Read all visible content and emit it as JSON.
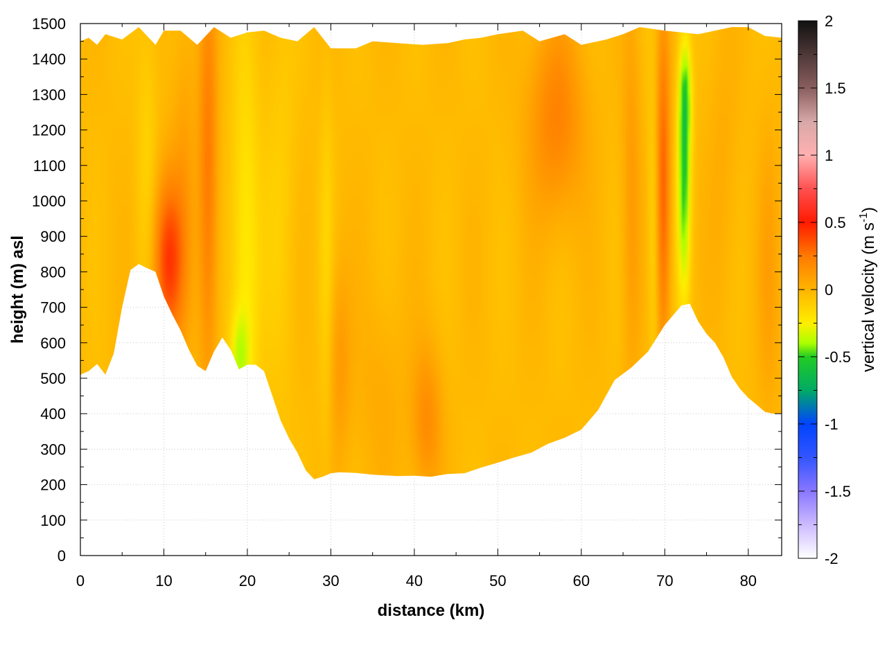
{
  "chart_data": {
    "type": "heatmap",
    "title": "",
    "xlabel": "distance (km)",
    "ylabel": "height (m) asl",
    "xlim": [
      0,
      84
    ],
    "ylim": [
      0,
      1500
    ],
    "xticks": [
      "0",
      "10",
      "20",
      "30",
      "40",
      "50",
      "60",
      "70",
      "80"
    ],
    "yticks": [
      "0",
      "100",
      "200",
      "300",
      "400",
      "500",
      "600",
      "700",
      "800",
      "900",
      "1000",
      "1100",
      "1200",
      "1300",
      "1400",
      "1500"
    ],
    "grid": true,
    "colorbar": {
      "label_main": "vertical velocity (m s",
      "label_sup": "-1",
      "label_end": ")",
      "range": [
        -2,
        2
      ],
      "ticks": [
        "2",
        "1.5",
        "1",
        "0.5",
        "0",
        "-0.5",
        "-1",
        "-1.5",
        "-2"
      ],
      "stops": [
        {
          "v": 2.0,
          "color": "#111111"
        },
        {
          "v": 1.5,
          "color": "#8a5e5e"
        },
        {
          "v": 1.25,
          "color": "#d8a8a8"
        },
        {
          "v": 1.0,
          "color": "#ffb0b0"
        },
        {
          "v": 0.75,
          "color": "#ff5050"
        },
        {
          "v": 0.5,
          "color": "#ff1a00"
        },
        {
          "v": 0.25,
          "color": "#ff7a00"
        },
        {
          "v": 0.0,
          "color": "#ffb400"
        },
        {
          "v": -0.25,
          "color": "#ffee00"
        },
        {
          "v": -0.4,
          "color": "#aaff00"
        },
        {
          "v": -0.5,
          "color": "#22cc22"
        },
        {
          "v": -0.75,
          "color": "#00aa66"
        },
        {
          "v": -1.0,
          "color": "#0044ff"
        },
        {
          "v": -1.25,
          "color": "#3355ff"
        },
        {
          "v": -1.5,
          "color": "#8877ff"
        },
        {
          "v": -1.75,
          "color": "#ccbbff"
        },
        {
          "v": -2.0,
          "color": "#ffffff"
        }
      ]
    },
    "terrain_km_m": [
      [
        0,
        510
      ],
      [
        1,
        520
      ],
      [
        2,
        540
      ],
      [
        3,
        510
      ],
      [
        4,
        570
      ],
      [
        5,
        700
      ],
      [
        6,
        805
      ],
      [
        7,
        822
      ],
      [
        8,
        810
      ],
      [
        9,
        800
      ],
      [
        10,
        730
      ],
      [
        11,
        680
      ],
      [
        12,
        635
      ],
      [
        13,
        580
      ],
      [
        14,
        535
      ],
      [
        15,
        520
      ],
      [
        16,
        575
      ],
      [
        17,
        615
      ],
      [
        18,
        580
      ],
      [
        19,
        525
      ],
      [
        20,
        538
      ],
      [
        21,
        538
      ],
      [
        22,
        520
      ],
      [
        23,
        450
      ],
      [
        24,
        380
      ],
      [
        25,
        330
      ],
      [
        26,
        290
      ],
      [
        27,
        240
      ],
      [
        28,
        215
      ],
      [
        29,
        222
      ],
      [
        30,
        232
      ],
      [
        31,
        235
      ],
      [
        33,
        233
      ],
      [
        35,
        228
      ],
      [
        38,
        224
      ],
      [
        40,
        225
      ],
      [
        42,
        222
      ],
      [
        44,
        230
      ],
      [
        46,
        232
      ],
      [
        48,
        248
      ],
      [
        50,
        262
      ],
      [
        52,
        277
      ],
      [
        54,
        290
      ],
      [
        56,
        315
      ],
      [
        58,
        332
      ],
      [
        60,
        355
      ],
      [
        62,
        410
      ],
      [
        64,
        495
      ],
      [
        66,
        530
      ],
      [
        68,
        575
      ],
      [
        70,
        650
      ],
      [
        72,
        705
      ],
      [
        73,
        710
      ],
      [
        74,
        660
      ],
      [
        75,
        625
      ],
      [
        76,
        600
      ],
      [
        77,
        560
      ],
      [
        78,
        505
      ],
      [
        79,
        470
      ],
      [
        80,
        445
      ],
      [
        81,
        425
      ],
      [
        82,
        405
      ],
      [
        83,
        400
      ],
      [
        84,
        400
      ]
    ],
    "top_km_m": [
      [
        0,
        1450
      ],
      [
        1,
        1460
      ],
      [
        2,
        1440
      ],
      [
        3,
        1470
      ],
      [
        5,
        1455
      ],
      [
        7,
        1490
      ],
      [
        9,
        1440
      ],
      [
        10,
        1480
      ],
      [
        12,
        1480
      ],
      [
        14,
        1440
      ],
      [
        16,
        1490
      ],
      [
        18,
        1460
      ],
      [
        20,
        1475
      ],
      [
        22,
        1480
      ],
      [
        24,
        1460
      ],
      [
        26,
        1450
      ],
      [
        28,
        1490
      ],
      [
        30,
        1430
      ],
      [
        33,
        1430
      ],
      [
        35,
        1450
      ],
      [
        38,
        1445
      ],
      [
        41,
        1440
      ],
      [
        44,
        1445
      ],
      [
        46,
        1455
      ],
      [
        48,
        1460
      ],
      [
        50,
        1470
      ],
      [
        53,
        1480
      ],
      [
        55,
        1450
      ],
      [
        58,
        1470
      ],
      [
        60,
        1440
      ],
      [
        63,
        1455
      ],
      [
        65,
        1470
      ],
      [
        67,
        1490
      ],
      [
        70,
        1480
      ],
      [
        72,
        1475
      ],
      [
        74,
        1470
      ],
      [
        76,
        1480
      ],
      [
        78,
        1490
      ],
      [
        80,
        1490
      ],
      [
        82,
        1465
      ],
      [
        84,
        1460
      ]
    ],
    "features": [
      {
        "x_km": 10.5,
        "z_m": 830,
        "sx_km": 1.3,
        "sz_m": 170,
        "w": 0.45
      },
      {
        "x_km": 15.3,
        "z_m": 1050,
        "sx_km": 0.8,
        "sz_m": 430,
        "w": 0.28
      },
      {
        "x_km": 12.5,
        "z_m": 1100,
        "sx_km": 1.0,
        "sz_m": 330,
        "w": 0.1
      },
      {
        "x_km": 8.0,
        "z_m": 1100,
        "sx_km": 0.9,
        "sz_m": 350,
        "w": -0.1
      },
      {
        "x_km": 19.8,
        "z_m": 800,
        "sx_km": 1.2,
        "sz_m": 450,
        "w": -0.22
      },
      {
        "x_km": 19.0,
        "z_m": 560,
        "sx_km": 0.8,
        "sz_m": 90,
        "w": -0.22
      },
      {
        "x_km": 24.0,
        "z_m": 1000,
        "sx_km": 1.4,
        "sz_m": 450,
        "w": -0.08
      },
      {
        "x_km": 31.0,
        "z_m": 550,
        "sx_km": 1.0,
        "sz_m": 200,
        "w": 0.14
      },
      {
        "x_km": 41.5,
        "z_m": 380,
        "sx_km": 1.3,
        "sz_m": 150,
        "w": 0.2
      },
      {
        "x_km": 36.0,
        "z_m": 450,
        "sx_km": 2.0,
        "sz_m": 200,
        "w": 0.07
      },
      {
        "x_km": 57.0,
        "z_m": 1230,
        "sx_km": 2.4,
        "sz_m": 200,
        "w": 0.24
      },
      {
        "x_km": 66.0,
        "z_m": 1000,
        "sx_km": 0.8,
        "sz_m": 400,
        "w": 0.14
      },
      {
        "x_km": 69.8,
        "z_m": 1050,
        "sx_km": 0.6,
        "sz_m": 350,
        "w": 0.35
      },
      {
        "x_km": 68.7,
        "z_m": 900,
        "sx_km": 0.5,
        "sz_m": 300,
        "w": -0.14
      },
      {
        "x_km": 72.3,
        "z_m": 1050,
        "sx_km": 0.55,
        "sz_m": 230,
        "w": -0.45
      },
      {
        "x_km": 72.5,
        "z_m": 1300,
        "sx_km": 0.55,
        "sz_m": 120,
        "w": -0.3
      },
      {
        "x_km": 77.0,
        "z_m": 1100,
        "sx_km": 1.3,
        "sz_m": 300,
        "w": 0.06
      },
      {
        "x_km": 82.5,
        "z_m": 800,
        "sx_km": 1.0,
        "sz_m": 300,
        "w": 0.1
      },
      {
        "x_km": 29.5,
        "z_m": 800,
        "sx_km": 0.6,
        "sz_m": 400,
        "w": -0.1
      }
    ],
    "background_w": -0.03
  }
}
